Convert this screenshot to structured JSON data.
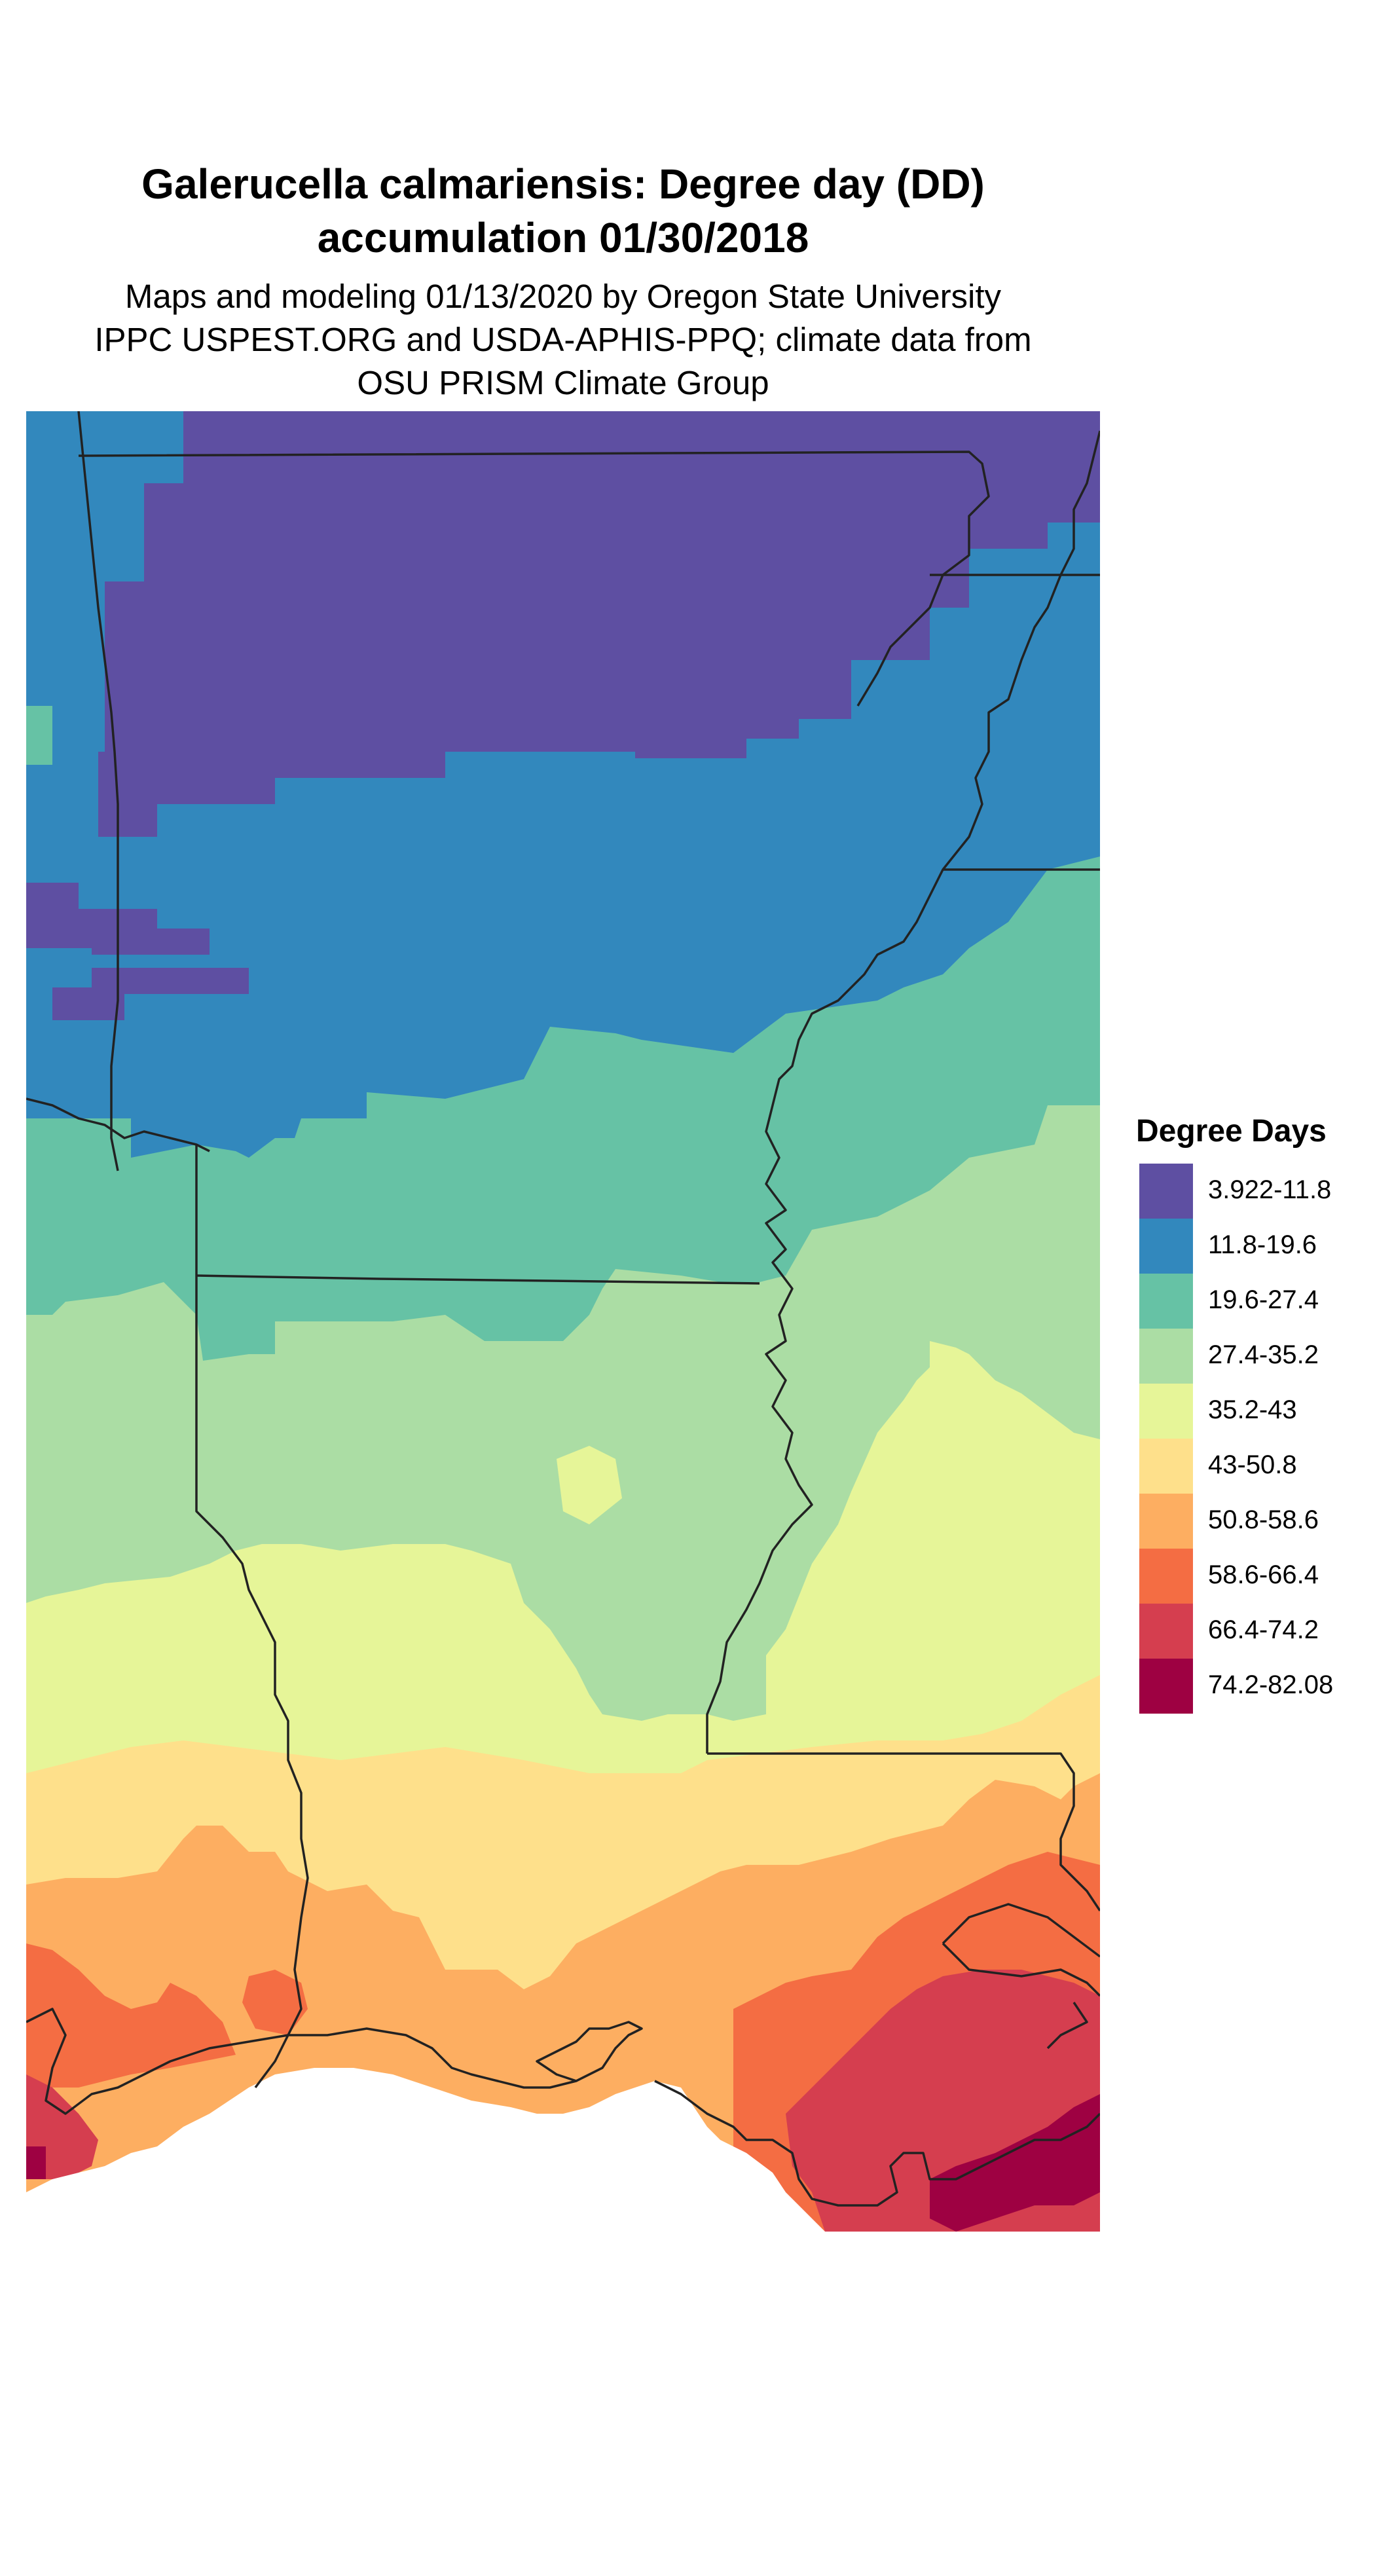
{
  "title": {
    "line1": "Galerucella calmariensis: Degree day (DD)",
    "line2": "accumulation 01/30/2018"
  },
  "subtitle": {
    "line1": "Maps and modeling 01/13/2020 by Oregon State University",
    "line2": "IPPC USPEST.ORG and USDA-APHIS-PPQ; climate data from",
    "line3": "OSU PRISM Climate Group"
  },
  "legend": {
    "title": "Degree Days",
    "items": [
      {
        "label": "3.922-11.8",
        "color": "#5e4fa2"
      },
      {
        "label": "11.8-19.6",
        "color": "#3288bd"
      },
      {
        "label": "19.6-27.4",
        "color": "#66c2a5"
      },
      {
        "label": "27.4-35.2",
        "color": "#abdda4"
      },
      {
        "label": "35.2-43",
        "color": "#e6f598"
      },
      {
        "label": "43-50.8",
        "color": "#fee08b"
      },
      {
        "label": "50.8-58.6",
        "color": "#fdae61"
      },
      {
        "label": "58.6-66.4",
        "color": "#f46d43"
      },
      {
        "label": "66.4-74.2",
        "color": "#d53e4f"
      },
      {
        "label": "74.2-82.08",
        "color": "#9e0142"
      }
    ]
  },
  "map": {
    "type": "choropleth",
    "region_color_classes": [
      "3.922-11.8",
      "11.8-19.6",
      "19.6-27.4",
      "27.4-35.2",
      "35.2-43",
      "43-50.8",
      "50.8-58.6",
      "58.6-66.4",
      "66.4-74.2",
      "74.2-82.08"
    ],
    "boundary_color": "#222222",
    "water_color": "#ffffff"
  }
}
